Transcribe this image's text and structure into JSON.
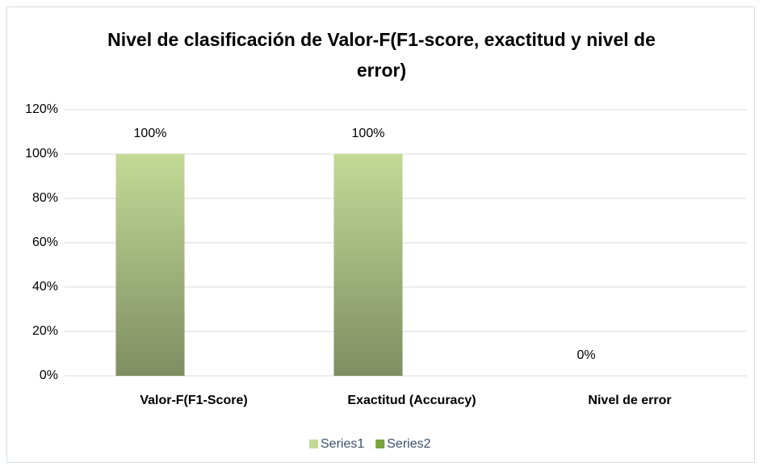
{
  "chart_data": {
    "type": "bar",
    "title": "Nivel de clasificación de Valor-F(F1-score, exactitud y nivel de error)",
    "categories": [
      "Valor-F(F1-Score)",
      "Exactitud (Accuracy)",
      "Nivel de error"
    ],
    "series": [
      {
        "name": "Series1",
        "color": "#c3da96",
        "values": [
          100,
          100,
          0
        ],
        "value_labels": [
          "100%",
          "100%",
          "0%"
        ]
      },
      {
        "name": "Series2",
        "color": "#79a33c",
        "values": [
          null,
          null,
          null
        ]
      }
    ],
    "ylim": [
      0,
      120
    ],
    "yticks": [
      {
        "value": 0,
        "label": "0%"
      },
      {
        "value": 20,
        "label": "20%"
      },
      {
        "value": 40,
        "label": "40%"
      },
      {
        "value": 60,
        "label": "60%"
      },
      {
        "value": 80,
        "label": "80%"
      },
      {
        "value": 100,
        "label": "100%"
      },
      {
        "value": 120,
        "label": "120%"
      }
    ],
    "grid": true,
    "legend": "bottom"
  }
}
